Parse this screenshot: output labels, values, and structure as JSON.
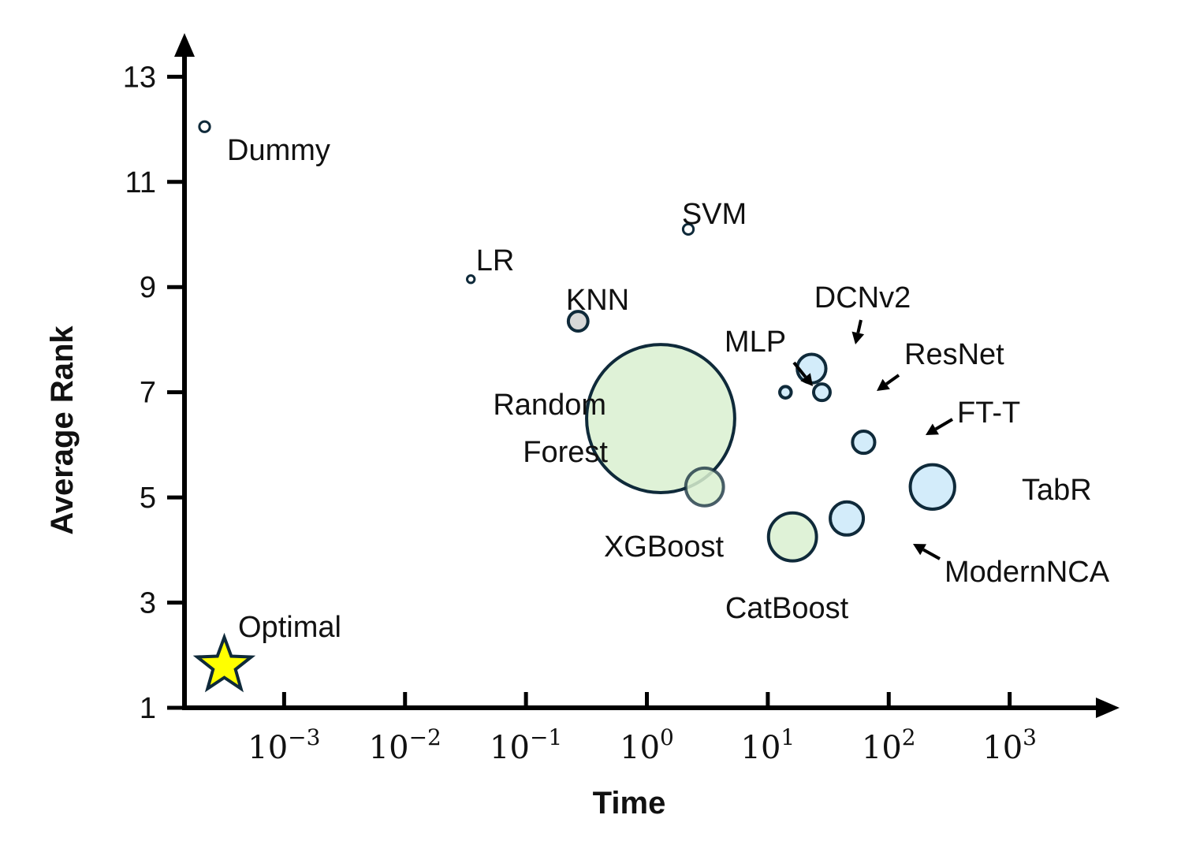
{
  "chart_data": {
    "type": "scatter",
    "title": "",
    "xlabel": "Time",
    "ylabel": "Average Rank",
    "xscale": "log",
    "xlim": [
      0.00015,
      6000
    ],
    "ylim": [
      1,
      13.5
    ],
    "yticks": [
      "1",
      "3",
      "5",
      "7",
      "9",
      "11",
      "13"
    ],
    "xticks": [
      {
        "value": 0.001,
        "base": "10",
        "exp": "−3"
      },
      {
        "value": 0.01,
        "base": "10",
        "exp": "−2"
      },
      {
        "value": 0.1,
        "base": "10",
        "exp": "−1"
      },
      {
        "value": 1,
        "base": "10",
        "exp": "0"
      },
      {
        "value": 10,
        "base": "10",
        "exp": "1"
      },
      {
        "value": 100,
        "base": "10",
        "exp": "2"
      },
      {
        "value": 1000,
        "base": "10",
        "exp": "3"
      }
    ],
    "grid": false,
    "colors": {
      "tree": "#d9f0d0",
      "deep": "#d3ecfa",
      "other": "#d8d8d8",
      "small": "#ffffff",
      "edge": "#0f2a3a",
      "star": "#ffff00"
    },
    "points": [
      {
        "name": "Dummy",
        "x": 0.00022,
        "y": 12.05,
        "size": 0.1,
        "group": "small"
      },
      {
        "name": "LR",
        "x": 0.035,
        "y": 9.15,
        "size": 0.05,
        "group": "small"
      },
      {
        "name": "SVM",
        "x": 2.2,
        "y": 10.1,
        "size": 0.1,
        "group": "small"
      },
      {
        "name": "KNN",
        "x": 0.27,
        "y": 8.35,
        "size": 0.35,
        "group": "other"
      },
      {
        "name": "Random Forest",
        "x": 1.3,
        "y": 6.5,
        "size": 20,
        "group": "tree"
      },
      {
        "name": "XGBoost",
        "x": 3.0,
        "y": 5.2,
        "size": 1.3,
        "group": "tree"
      },
      {
        "name": "CatBoost",
        "x": 16,
        "y": 4.25,
        "size": 2.1,
        "group": "tree"
      },
      {
        "name": "MLP",
        "x": 14,
        "y": 7.0,
        "size": 0.12,
        "group": "deep"
      },
      {
        "name": "DCNv2",
        "x": 23,
        "y": 7.45,
        "size": 0.75,
        "group": "deep"
      },
      {
        "name": "ResNet",
        "x": 28,
        "y": 7.0,
        "size": 0.25,
        "group": "deep"
      },
      {
        "name": "FT-T",
        "x": 62,
        "y": 6.05,
        "size": 0.45,
        "group": "deep"
      },
      {
        "name": "TabR",
        "x": 230,
        "y": 5.2,
        "size": 1.8,
        "group": "deep"
      },
      {
        "name": "ModernNCA",
        "x": 45,
        "y": 4.6,
        "size": 1.0,
        "group": "deep"
      }
    ],
    "optimal": {
      "name": "Optimal",
      "x": 0.00032,
      "y": 1.8
    }
  }
}
